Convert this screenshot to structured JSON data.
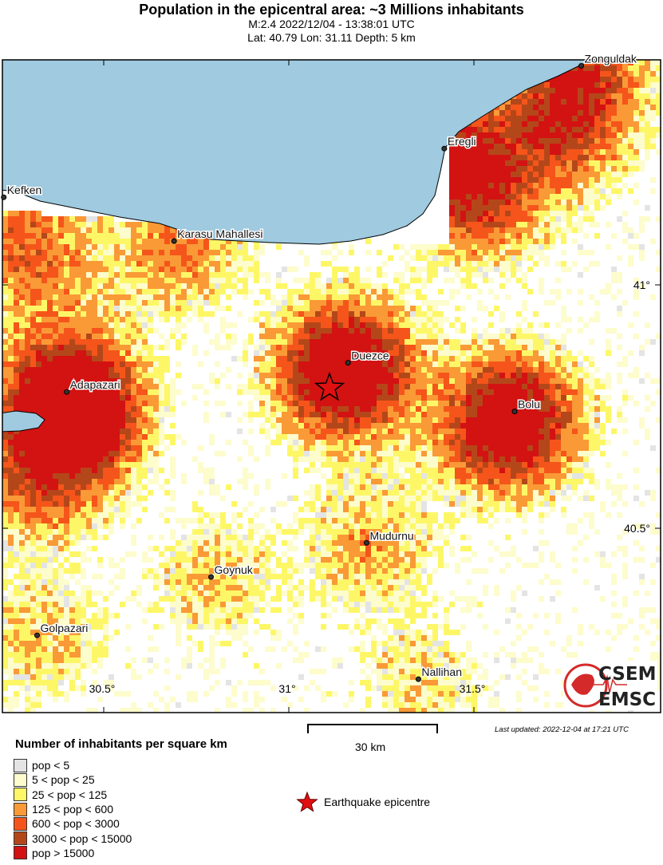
{
  "header": {
    "title": "Population in the epicentral area: ~3 Millions inhabitants",
    "event": "M:2.4 2022/12/04 - 13:38:01 UTC",
    "location": "Lat: 40.79 Lon: 31.11 Depth: 5 km"
  },
  "map": {
    "sea_color": "#9fcae0",
    "cities": [
      {
        "name": "Zonguldak",
        "lat": 41.45,
        "lon": 31.79
      },
      {
        "name": "Eregli",
        "lat": 41.28,
        "lon": 31.42
      },
      {
        "name": "Kefken",
        "lat": 41.18,
        "lon": 30.23
      },
      {
        "name": "Karasu Mahallesi",
        "lat": 41.09,
        "lon": 30.69
      },
      {
        "name": "Duezce",
        "lat": 40.84,
        "lon": 31.16
      },
      {
        "name": "Adapazari",
        "lat": 40.78,
        "lon": 30.4
      },
      {
        "name": "Bolu",
        "lat": 40.74,
        "lon": 31.61
      },
      {
        "name": "Mudurnu",
        "lat": 40.47,
        "lon": 31.21
      },
      {
        "name": "Goynuk",
        "lat": 40.4,
        "lon": 30.79
      },
      {
        "name": "Golpazari",
        "lat": 40.28,
        "lon": 30.32
      },
      {
        "name": "Nallihan",
        "lat": 40.19,
        "lon": 31.35
      }
    ],
    "epicentre": {
      "lat": 40.79,
      "lon": 31.11
    },
    "lon_ticks": [
      "30.5°",
      "31°",
      "31.5°"
    ],
    "lat_ticks": [
      "41°",
      "40.5°"
    ]
  },
  "legend": {
    "title": "Number of inhabitants per square km",
    "classes": [
      {
        "label": "pop < 5",
        "color": "#e4e4e4"
      },
      {
        "label": "5 < pop < 25",
        "color": "#fdfccc"
      },
      {
        "label": "25 < pop < 125",
        "color": "#fdf767"
      },
      {
        "label": "125 < pop < 600",
        "color": "#f99a36"
      },
      {
        "label": "600 < pop < 3000",
        "color": "#f5551a"
      },
      {
        "label": "3000 < pop < 15000",
        "color": "#b4471a"
      },
      {
        "label": "pop > 15000",
        "color": "#d31212"
      }
    ],
    "epicentre_label": "Earthquake epicentre"
  },
  "scale": {
    "label": "30 km"
  },
  "footer": {
    "updated": "Last updated: 2022-12-04 at 17:21 UTC"
  },
  "logo": {
    "top": "CSEM",
    "bottom": "EMSC"
  }
}
